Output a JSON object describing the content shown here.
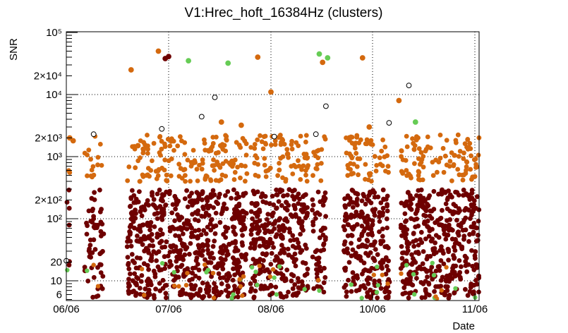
{
  "chart_data": {
    "type": "scatter",
    "title": "V1:Hrec_hoft_16384Hz (clusters)",
    "xlabel": "Date",
    "ylabel": "SNR",
    "x_scale": "date",
    "y_scale": "log",
    "xlim": [
      "06/06",
      "11/06"
    ],
    "ylim": [
      5,
      100000
    ],
    "x_tick_labels": [
      "06/06",
      "07/06",
      "08/06",
      "10/06",
      "11/06"
    ],
    "y_tick_labels": [
      "6",
      "10",
      "20",
      "10²",
      "2×10²",
      "10³",
      "2×10³",
      "10⁴",
      "2×10⁴",
      "10⁵"
    ],
    "grid": true,
    "markers": {
      "dark_red": "#6e0000",
      "orange": "#d4690e",
      "green": "#66cc55",
      "blue": "#1f6fc8",
      "hollow": "#ffffff"
    },
    "points": [
      [
        "06/06",
        21
      ],
      [
        "06/07",
        2000
      ],
      [
        "06/08",
        1800
      ],
      [
        "06/14",
        2300
      ],
      [
        "06/25",
        25000
      ],
      [
        "06/27",
        1500
      ],
      [
        "07/03",
        50000
      ],
      [
        "07/05",
        38000
      ],
      [
        "07/06",
        41000
      ],
      [
        "07/04",
        2800
      ],
      [
        "07/12",
        35000
      ],
      [
        "07/16",
        4400
      ],
      [
        "07/20",
        9000
      ],
      [
        "07/22",
        3600
      ],
      [
        "07/24",
        32000
      ],
      [
        "07/28",
        3200
      ],
      [
        "08/02",
        40000
      ],
      [
        "08/06",
        11000
      ],
      [
        "08/08",
        2100
      ],
      [
        "08/16",
        1100
      ],
      [
        "09/02",
        2300
      ],
      [
        "09/04",
        45000
      ],
      [
        "09/06",
        33000
      ],
      [
        "09/08",
        6500
      ],
      [
        "09/09",
        39000
      ],
      [
        "09/30",
        39000
      ],
      [
        "10/04",
        3000
      ],
      [
        "10/11",
        3500
      ],
      [
        "10/14",
        8000
      ],
      [
        "10/17",
        14000
      ],
      [
        "10/19",
        3600
      ]
    ]
  }
}
